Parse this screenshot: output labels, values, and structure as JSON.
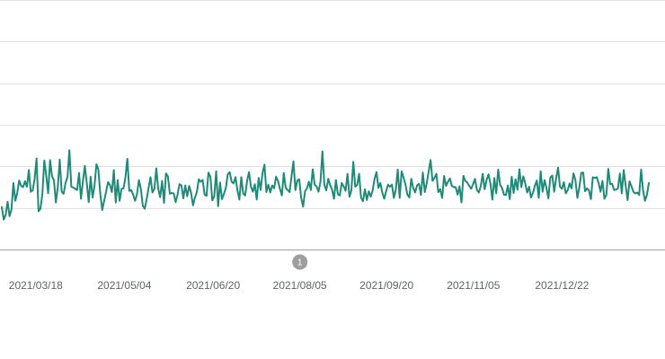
{
  "colors": {
    "line": "#1e8a78",
    "grid": "#e0e0e0",
    "axis": "#9e9e9e",
    "tick_text": "#5f6368",
    "annotation_bg": "#9e9e9e",
    "annotation_text": "#ffffff"
  },
  "chart_data": {
    "type": "line",
    "title": "",
    "xlabel": "",
    "ylabel": "",
    "grid": true,
    "x_start": "2021-02-28",
    "x_end": "2022-02-06",
    "xticks": [
      "2021/03/18",
      "2021/05/04",
      "2021/06/20",
      "2021/08/05",
      "2021/09/20",
      "2021/11/05",
      "2021/12/22"
    ],
    "ylim": [
      0,
      6
    ],
    "yticks": [
      0,
      1,
      2,
      3,
      4,
      5,
      6
    ],
    "series": [
      {
        "values": [
          1.02,
          0.72,
          0.83,
          1.15,
          0.8,
          0.96,
          1.6,
          1.17,
          1.36,
          1.66,
          1.53,
          1.5,
          1.64,
          1.51,
          1.91,
          1.39,
          1.42,
          1.7,
          2.19,
          0.92,
          0.98,
          1.33,
          2.14,
          1.78,
          1.35,
          2.15,
          1.76,
          1.66,
          1.13,
          1.5,
          2.16,
          1.39,
          1.34,
          1.6,
          1.74,
          2.39,
          1.51,
          1.49,
          1.46,
          1.43,
          1.84,
          1.22,
          1.64,
          2.01,
          1.6,
          1.14,
          1.75,
          1.25,
          1.53,
          2.05,
          1.92,
          1.33,
          0.95,
          1.17,
          1.39,
          1.62,
          1.55,
          1.38,
          1.91,
          1.13,
          1.67,
          1.17,
          1.46,
          1.47,
          1.73,
          2.18,
          1.41,
          1.43,
          1.32,
          1.17,
          1.33,
          1.67,
          1.46,
          1.05,
          0.98,
          1.21,
          1.48,
          1.74,
          1.37,
          1.46,
          1.95,
          1.46,
          1.26,
          1.65,
          1.12,
          1.83,
          1.76,
          1.34,
          1.36,
          1.35,
          1.14,
          1.32,
          1.57,
          1.54,
          1.23,
          1.54,
          1.28,
          1.53,
          1.36,
          1.06,
          1.25,
          1.38,
          1.69,
          1.63,
          1.67,
          1.32,
          1.29,
          1.85,
          1.75,
          1.18,
          1.28,
          1.88,
          1.04,
          1.61,
          1.21,
          1.34,
          1.48,
          1.81,
          1.86,
          1.63,
          1.59,
          1.74,
          1.42,
          1.2,
          1.74,
          1.34,
          1.3,
          1.65,
          1.86,
          1.51,
          1.39,
          1.57,
          1.2,
          1.72,
          1.43,
          1.84,
          2.04,
          1.38,
          1.56,
          1.37,
          1.54,
          1.47,
          1.75,
          1.65,
          1.46,
          1.3,
          1.84,
          1.48,
          1.43,
          1.38,
          1.76,
          2.12,
          1.43,
          1.66,
          1.69,
          1.24,
          1.03,
          1.4,
          1.47,
          1.63,
          1.43,
          1.93,
          1.56,
          1.51,
          1.39,
          1.63,
          2.36,
          1.56,
          1.42,
          1.7,
          1.55,
          1.44,
          1.22,
          1.67,
          1.33,
          1.3,
          1.6,
          1.52,
          1.41,
          1.82,
          1.27,
          1.42,
          2.11,
          1.51,
          1.55,
          1.82,
          1.25,
          1.16,
          1.45,
          1.19,
          1.4,
          1.27,
          1.42,
          1.7,
          1.86,
          1.48,
          1.6,
          1.37,
          1.22,
          1.4,
          1.56,
          1.51,
          1.56,
          1.24,
          1.44,
          1.92,
          1.24,
          1.88,
          1.73,
          1.56,
          1.32,
          1.25,
          1.7,
          1.48,
          1.37,
          1.54,
          1.58,
          1.31,
          1.85,
          1.38,
          1.59,
          1.88,
          2.15,
          1.65,
          1.72,
          1.82,
          1.38,
          1.45,
          1.24,
          1.77,
          1.53,
          1.63,
          1.71,
          1.53,
          1.5,
          1.5,
          1.32,
          1.52,
          1.13,
          1.77,
          1.65,
          1.61,
          1.53,
          1.46,
          1.57,
          1.7,
          1.43,
          1.37,
          1.53,
          1.82,
          1.45,
          1.67,
          1.81,
          1.58,
          1.2,
          1.72,
          1.35,
          1.92,
          1.56,
          1.48,
          1.32,
          1.31,
          1.54,
          1.21,
          1.75,
          1.36,
          1.69,
          1.44,
          1.93,
          1.5,
          1.76,
          1.59,
          1.37,
          1.51,
          1.25,
          1.36,
          1.53,
          1.66,
          1.24,
          1.88,
          1.39,
          1.67,
          1.48,
          1.23,
          1.73,
          1.78,
          1.39,
          1.71,
          1.97,
          1.51,
          1.46,
          1.62,
          1.35,
          1.43,
          1.59,
          1.47,
          1.83,
          1.67,
          1.24,
          1.49,
          1.84,
          1.85,
          1.4,
          1.47,
          1.42,
          1.21,
          1.74,
          1.72,
          1.74,
          1.6,
          1.39,
          1.65,
          1.22,
          1.31,
          1.94,
          1.57,
          1.58,
          1.43,
          1.44,
          1.47,
          1.83,
          1.35,
          1.91,
          1.54,
          1.19,
          1.64,
          1.52,
          1.39,
          1.35,
          1.37,
          1.31,
          1.92,
          1.43,
          1.17,
          1.31,
          1.6
        ]
      }
    ],
    "annotations": [
      {
        "label": "1",
        "x": "2021-08-05"
      }
    ]
  }
}
